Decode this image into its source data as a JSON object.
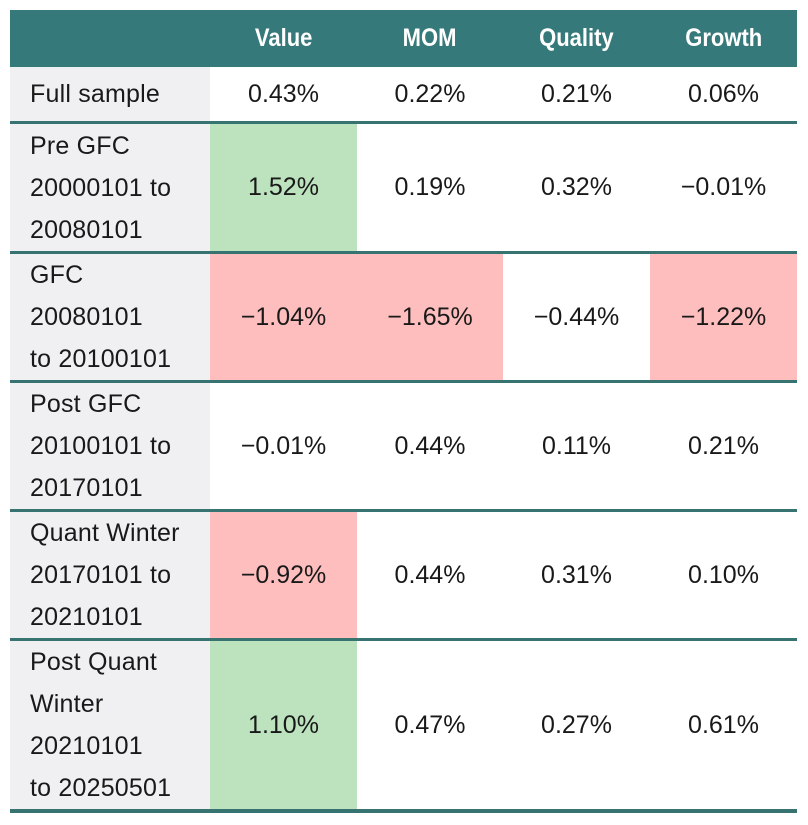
{
  "colors": {
    "header_bg": "#36797a",
    "header_text": "#ffffff",
    "row_separator": "#377370",
    "label_column_bg": "#f0eff1",
    "highlight_green": "#bce3bd",
    "highlight_red": "#ffbebe",
    "body_text": "#191919",
    "background": "#ffffff"
  },
  "table": {
    "columns": [
      {
        "label": ""
      },
      {
        "label": "Value"
      },
      {
        "label": "MOM"
      },
      {
        "label": "Quality"
      },
      {
        "label": "Growth"
      }
    ],
    "rows": [
      {
        "label": "Full sample",
        "cells": [
          {
            "v": "0.43%",
            "hl": "none"
          },
          {
            "v": "0.22%",
            "hl": "none"
          },
          {
            "v": "0.21%",
            "hl": "none"
          },
          {
            "v": "0.06%",
            "hl": "none"
          }
        ]
      },
      {
        "label": "Pre GFC\n20000101 to\n20080101",
        "cells": [
          {
            "v": "1.52%",
            "hl": "green"
          },
          {
            "v": "0.19%",
            "hl": "none"
          },
          {
            "v": "0.32%",
            "hl": "none"
          },
          {
            "v": "−0.01%",
            "hl": "none"
          }
        ]
      },
      {
        "label": "GFC 20080101\nto 20100101",
        "cells": [
          {
            "v": "−1.04%",
            "hl": "red"
          },
          {
            "v": "−1.65%",
            "hl": "red"
          },
          {
            "v": "−0.44%",
            "hl": "none"
          },
          {
            "v": "−1.22%",
            "hl": "red"
          }
        ]
      },
      {
        "label": "Post GFC\n20100101 to\n20170101",
        "cells": [
          {
            "v": "−0.01%",
            "hl": "none"
          },
          {
            "v": "0.44%",
            "hl": "none"
          },
          {
            "v": "0.11%",
            "hl": "none"
          },
          {
            "v": "0.21%",
            "hl": "none"
          }
        ]
      },
      {
        "label": "Quant Winter\n20170101 to\n20210101",
        "cells": [
          {
            "v": "−0.92%",
            "hl": "red"
          },
          {
            "v": "0.44%",
            "hl": "none"
          },
          {
            "v": "0.31%",
            "hl": "none"
          },
          {
            "v": "0.10%",
            "hl": "none"
          }
        ]
      },
      {
        "label": "Post Quant\nWinter 20210101\nto 20250501",
        "cells": [
          {
            "v": "1.10%",
            "hl": "green"
          },
          {
            "v": "0.47%",
            "hl": "none"
          },
          {
            "v": "0.27%",
            "hl": "none"
          },
          {
            "v": "0.61%",
            "hl": "none"
          }
        ]
      }
    ]
  },
  "chart_data": {
    "type": "table",
    "title": "",
    "unit": "%",
    "columns": [
      "",
      "Value",
      "MOM",
      "Quality",
      "Growth"
    ],
    "rows": [
      {
        "period": "Full sample",
        "Value": 0.43,
        "MOM": 0.22,
        "Quality": 0.21,
        "Growth": 0.06,
        "highlighted_cells": {}
      },
      {
        "period": "Pre GFC 20000101 to 20080101",
        "Value": 1.52,
        "MOM": 0.19,
        "Quality": 0.32,
        "Growth": -0.01,
        "highlighted_cells": {
          "Value": "green"
        }
      },
      {
        "period": "GFC 20080101 to 20100101",
        "Value": -1.04,
        "MOM": -1.65,
        "Quality": -0.44,
        "Growth": -1.22,
        "highlighted_cells": {
          "Value": "red",
          "MOM": "red",
          "Growth": "red"
        }
      },
      {
        "period": "Post GFC 20100101 to 20170101",
        "Value": -0.01,
        "MOM": 0.44,
        "Quality": 0.11,
        "Growth": 0.21,
        "highlighted_cells": {}
      },
      {
        "period": "Quant Winter 20170101 to 20210101",
        "Value": -0.92,
        "MOM": 0.44,
        "Quality": 0.31,
        "Growth": 0.1,
        "highlighted_cells": {
          "Value": "red"
        }
      },
      {
        "period": "Post Quant Winter 20210101 to 20250501",
        "Value": 1.1,
        "MOM": 0.47,
        "Quality": 0.27,
        "Growth": 0.61,
        "highlighted_cells": {
          "Value": "green"
        }
      }
    ]
  }
}
